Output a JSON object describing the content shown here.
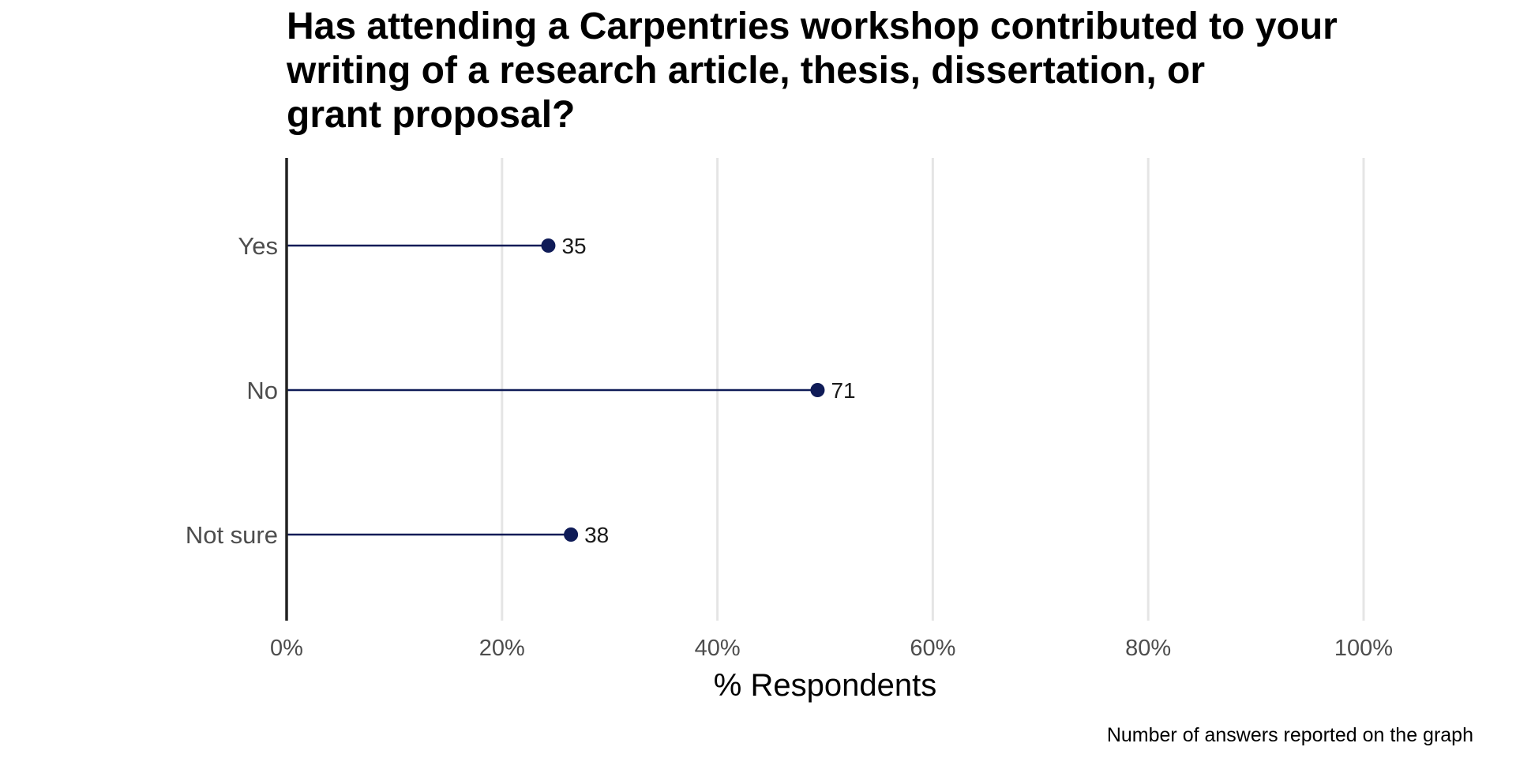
{
  "chart_data": {
    "type": "lollipop",
    "title": "Has attending a Carpentries workshop contributed to your\nwriting of a research article, thesis, dissertation, or\ngrant proposal?",
    "categories": [
      "Yes",
      "No",
      "Not sure"
    ],
    "values_percent": [
      24.3,
      49.3,
      26.4
    ],
    "data_labels": [
      "35",
      "71",
      "38"
    ],
    "xlabel": "% Respondents",
    "ylabel": "",
    "xlim": [
      0,
      100
    ],
    "x_ticks": [
      0,
      20,
      40,
      60,
      80,
      100
    ],
    "x_tick_labels": [
      "0%",
      "20%",
      "40%",
      "60%",
      "80%",
      "100%"
    ],
    "caption": "Number of answers reported on the graph",
    "grid": "vertical major",
    "legend": "none",
    "colors": {
      "marker": "#0f1b57",
      "stem": "#0f1b57",
      "gridline": "#e5e5e5",
      "axis": "#222222"
    }
  }
}
